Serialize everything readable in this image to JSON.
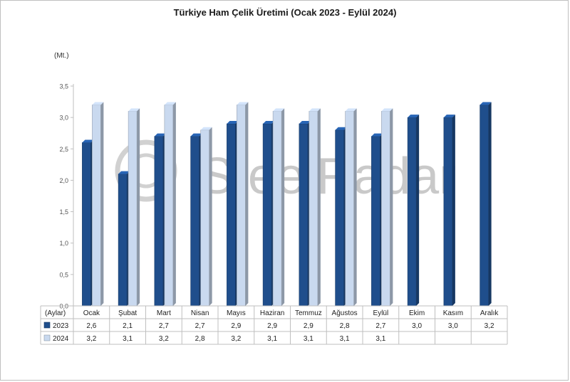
{
  "chart_data": {
    "type": "bar",
    "title": "Türkiye Ham Çelik Üretimi (Ocak 2023 - Eylül 2024)",
    "ylabel": "(Mt.)",
    "xlabel": "(Aylar)",
    "ylim": [
      0,
      3.5
    ],
    "yticks": [
      "0,0",
      "0,5",
      "1,0",
      "1,5",
      "2,0",
      "2,5",
      "3,0",
      "3,5"
    ],
    "categories": [
      "Ocak",
      "Şubat",
      "Mart",
      "Nisan",
      "Mayıs",
      "Haziran",
      "Temmuz",
      "Ağustos",
      "Eylül",
      "Ekim",
      "Kasım",
      "Aralık"
    ],
    "series": [
      {
        "name": "2023",
        "color": "#1f4e8c",
        "values": [
          2.6,
          2.1,
          2.7,
          2.7,
          2.9,
          2.9,
          2.9,
          2.8,
          2.7,
          3.0,
          3.0,
          3.2
        ],
        "labels": [
          "2,6",
          "2,1",
          "2,7",
          "2,7",
          "2,9",
          "2,9",
          "2,9",
          "2,8",
          "2,7",
          "3,0",
          "3,0",
          "3,2"
        ]
      },
      {
        "name": "2024",
        "color": "#c9d9ef",
        "values": [
          3.2,
          3.1,
          3.2,
          2.8,
          3.2,
          3.1,
          3.1,
          3.1,
          3.1,
          null,
          null,
          null
        ],
        "labels": [
          "3,2",
          "3,1",
          "3,2",
          "2,8",
          "3,2",
          "3,1",
          "3,1",
          "3,1",
          "3,1",
          "",
          "",
          ""
        ]
      }
    ],
    "grid": false,
    "legend": "table-bottom-left",
    "watermark": "SteelRadar"
  }
}
